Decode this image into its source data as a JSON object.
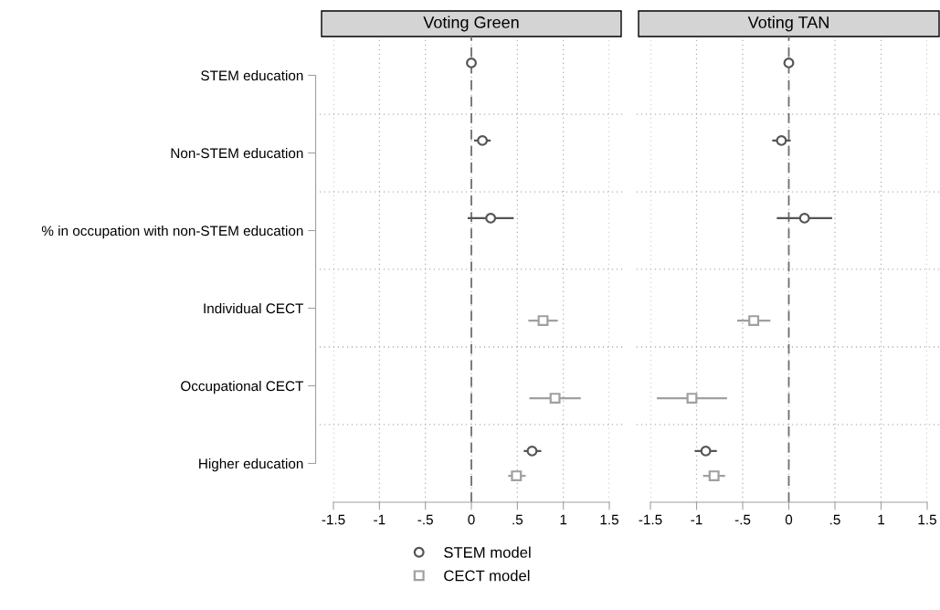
{
  "chart_data": [
    {
      "type": "scatter",
      "orientation": "horizontal",
      "title": "Voting Green",
      "categories": [
        "STEM education",
        "Non-STEM education",
        "% in occupation with non-STEM education",
        "Individual CECT",
        "Occupational CECT",
        "Higher education"
      ],
      "series": [
        {
          "name": "STEM model",
          "color": "#555555",
          "marker": "circle",
          "values": [
            0,
            0.12,
            0.21,
            null,
            null,
            0.66
          ],
          "errors": [
            null,
            [
              0.03,
              0.21
            ],
            [
              -0.04,
              0.46
            ],
            null,
            null,
            [
              0.57,
              0.76
            ]
          ]
        },
        {
          "name": "CECT model",
          "color": "#a0a0a0",
          "marker": "square",
          "values": [
            null,
            null,
            null,
            0.78,
            0.91,
            0.49
          ],
          "errors": [
            null,
            null,
            null,
            [
              0.62,
              0.94
            ],
            [
              0.63,
              1.19
            ],
            [
              0.4,
              0.59
            ]
          ]
        }
      ],
      "xlim": [
        -1.5,
        1.5
      ],
      "xticks": [
        {
          "value": -1.5,
          "label": "-1.5"
        },
        {
          "value": -1,
          "label": "-1"
        },
        {
          "value": -0.5,
          "label": "-.5"
        },
        {
          "value": 0,
          "label": "0"
        },
        {
          "value": 0.5,
          "label": ".5"
        },
        {
          "value": 1,
          "label": "1"
        },
        {
          "value": 1.5,
          "label": "1.5"
        }
      ],
      "ref_lines": [
        {
          "axis": "x",
          "value": 0,
          "color": "#707070",
          "line_style": "dashed"
        }
      ],
      "grid": true,
      "legend": "bottom"
    },
    {
      "type": "scatter",
      "orientation": "horizontal",
      "title": "Voting TAN",
      "categories": [
        null,
        null,
        null,
        null,
        null,
        null
      ],
      "series": [
        {
          "color": "#555555",
          "marker": "circle",
          "values": [
            0,
            -0.08,
            0.17,
            null,
            null,
            -0.9
          ],
          "errors": [
            null,
            [
              -0.18,
              0.02
            ],
            [
              -0.13,
              0.47
            ],
            null,
            null,
            [
              -1.02,
              -0.78
            ]
          ]
        },
        {
          "color": "#a0a0a0",
          "marker": "square",
          "values": [
            null,
            null,
            null,
            -0.38,
            -1.05,
            -0.81
          ],
          "errors": [
            null,
            null,
            null,
            [
              -0.56,
              -0.2
            ],
            [
              -1.43,
              -0.67
            ],
            [
              -0.93,
              -0.69
            ]
          ]
        }
      ],
      "xlim": [
        -1.5,
        1.5
      ],
      "xticks": [
        {
          "value": -1.5,
          "label": "-1.5"
        },
        {
          "value": -1,
          "label": "-1"
        },
        {
          "value": -0.5,
          "label": "-.5"
        },
        {
          "value": 0,
          "label": "0"
        },
        {
          "value": 0.5,
          "label": ".5"
        },
        {
          "value": 1,
          "label": "1"
        },
        {
          "value": 1.5,
          "label": "1.5"
        }
      ],
      "ref_lines": [
        {
          "axis": "x",
          "value": 0,
          "color": "#707070",
          "line_style": "dashed"
        }
      ],
      "grid": true,
      "tick_labels": "x"
    }
  ]
}
